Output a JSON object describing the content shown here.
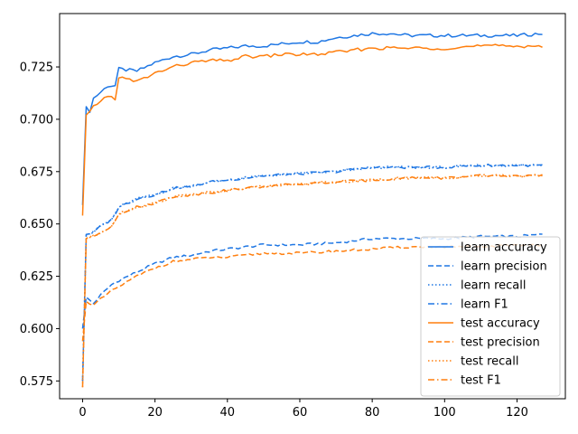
{
  "chart_data": {
    "type": "line",
    "xlim": [
      -6.35,
      133.35
    ],
    "ylim": [
      0.5665,
      0.7505
    ],
    "x_ticks": [
      0,
      20,
      40,
      60,
      80,
      100,
      120
    ],
    "y_ticks": [
      0.575,
      0.6,
      0.625,
      0.65,
      0.675,
      0.7,
      0.725
    ],
    "x_tick_labels": [
      "0",
      "20",
      "40",
      "60",
      "80",
      "100",
      "120"
    ],
    "y_tick_labels": [
      "0.575",
      "0.600",
      "0.625",
      "0.650",
      "0.675",
      "0.700",
      "0.725"
    ],
    "grid": false,
    "legend_position": "lower-right",
    "n_points": 128,
    "colors": {
      "learn": "#1f77e4",
      "test": "#ff7f0e"
    },
    "series": [
      {
        "name": "learn accuracy",
        "group": "learn",
        "style": "solid",
        "anchors": [
          [
            0,
            0.659
          ],
          [
            1,
            0.706
          ],
          [
            2,
            0.704
          ],
          [
            3,
            0.71
          ],
          [
            5,
            0.713
          ],
          [
            7,
            0.716
          ],
          [
            9,
            0.716
          ],
          [
            10,
            0.724
          ],
          [
            15,
            0.723
          ],
          [
            20,
            0.727
          ],
          [
            25,
            0.73
          ],
          [
            30,
            0.731
          ],
          [
            35,
            0.733
          ],
          [
            40,
            0.734
          ],
          [
            45,
            0.735
          ],
          [
            50,
            0.735
          ],
          [
            55,
            0.736
          ],
          [
            60,
            0.737
          ],
          [
            65,
            0.737
          ],
          [
            70,
            0.739
          ],
          [
            75,
            0.74
          ],
          [
            80,
            0.741
          ],
          [
            85,
            0.741
          ],
          [
            90,
            0.74
          ],
          [
            100,
            0.74
          ],
          [
            110,
            0.74
          ],
          [
            120,
            0.74
          ],
          [
            127,
            0.741
          ]
        ]
      },
      {
        "name": "learn precision",
        "group": "learn",
        "style": "dashed",
        "anchors": [
          [
            0,
            0.6
          ],
          [
            1,
            0.615
          ],
          [
            3,
            0.612
          ],
          [
            5,
            0.616
          ],
          [
            8,
            0.621
          ],
          [
            10,
            0.623
          ],
          [
            15,
            0.627
          ],
          [
            20,
            0.631
          ],
          [
            25,
            0.634
          ],
          [
            30,
            0.635
          ],
          [
            35,
            0.637
          ],
          [
            40,
            0.638
          ],
          [
            45,
            0.639
          ],
          [
            50,
            0.64
          ],
          [
            60,
            0.64
          ],
          [
            70,
            0.641
          ],
          [
            80,
            0.643
          ],
          [
            90,
            0.643
          ],
          [
            100,
            0.643
          ],
          [
            110,
            0.644
          ],
          [
            120,
            0.644
          ],
          [
            127,
            0.645
          ]
        ]
      },
      {
        "name": "learn recall",
        "group": "learn",
        "style": "dotted",
        "anchors": [
          [
            0,
            0.575
          ],
          [
            1,
            0.645
          ],
          [
            3,
            0.646
          ],
          [
            5,
            0.649
          ],
          [
            8,
            0.652
          ],
          [
            10,
            0.658
          ],
          [
            15,
            0.662
          ],
          [
            20,
            0.664
          ],
          [
            25,
            0.667
          ],
          [
            30,
            0.668
          ],
          [
            35,
            0.67
          ],
          [
            40,
            0.671
          ],
          [
            45,
            0.672
          ],
          [
            50,
            0.673
          ],
          [
            60,
            0.674
          ],
          [
            70,
            0.675
          ],
          [
            80,
            0.677
          ],
          [
            90,
            0.677
          ],
          [
            100,
            0.677
          ],
          [
            110,
            0.678
          ],
          [
            120,
            0.678
          ],
          [
            127,
            0.678
          ]
        ]
      },
      {
        "name": "learn F1",
        "group": "learn",
        "style": "dashdot",
        "anchors": [
          [
            0,
            0.575
          ],
          [
            1,
            0.645
          ],
          [
            3,
            0.646
          ],
          [
            5,
            0.649
          ],
          [
            8,
            0.652
          ],
          [
            10,
            0.658
          ],
          [
            15,
            0.662
          ],
          [
            20,
            0.664
          ],
          [
            25,
            0.667
          ],
          [
            30,
            0.668
          ],
          [
            35,
            0.67
          ],
          [
            40,
            0.671
          ],
          [
            45,
            0.672
          ],
          [
            50,
            0.673
          ],
          [
            60,
            0.674
          ],
          [
            70,
            0.675
          ],
          [
            80,
            0.677
          ],
          [
            90,
            0.677
          ],
          [
            100,
            0.677
          ],
          [
            110,
            0.678
          ],
          [
            120,
            0.678
          ],
          [
            127,
            0.678
          ]
        ]
      },
      {
        "name": "test accuracy",
        "group": "test",
        "style": "solid",
        "anchors": [
          [
            0,
            0.654
          ],
          [
            1,
            0.702
          ],
          [
            2,
            0.703
          ],
          [
            3,
            0.706
          ],
          [
            5,
            0.709
          ],
          [
            7,
            0.711
          ],
          [
            9,
            0.71
          ],
          [
            10,
            0.72
          ],
          [
            15,
            0.718
          ],
          [
            20,
            0.722
          ],
          [
            25,
            0.725
          ],
          [
            30,
            0.727
          ],
          [
            35,
            0.728
          ],
          [
            40,
            0.728
          ],
          [
            45,
            0.73
          ],
          [
            50,
            0.73
          ],
          [
            55,
            0.731
          ],
          [
            60,
            0.731
          ],
          [
            65,
            0.731
          ],
          [
            70,
            0.732
          ],
          [
            75,
            0.733
          ],
          [
            80,
            0.734
          ],
          [
            85,
            0.734
          ],
          [
            90,
            0.734
          ],
          [
            100,
            0.734
          ],
          [
            110,
            0.735
          ],
          [
            120,
            0.735
          ],
          [
            127,
            0.735
          ]
        ]
      },
      {
        "name": "test precision",
        "group": "test",
        "style": "dashed",
        "anchors": [
          [
            0,
            0.594
          ],
          [
            1,
            0.613
          ],
          [
            3,
            0.611
          ],
          [
            5,
            0.614
          ],
          [
            8,
            0.618
          ],
          [
            10,
            0.62
          ],
          [
            15,
            0.625
          ],
          [
            20,
            0.629
          ],
          [
            25,
            0.632
          ],
          [
            30,
            0.633
          ],
          [
            35,
            0.634
          ],
          [
            40,
            0.634
          ],
          [
            45,
            0.635
          ],
          [
            50,
            0.636
          ],
          [
            60,
            0.636
          ],
          [
            70,
            0.637
          ],
          [
            80,
            0.638
          ],
          [
            90,
            0.639
          ],
          [
            100,
            0.639
          ],
          [
            110,
            0.639
          ],
          [
            120,
            0.64
          ],
          [
            127,
            0.64
          ]
        ]
      },
      {
        "name": "test recall",
        "group": "test",
        "style": "dotted",
        "anchors": [
          [
            0,
            0.572
          ],
          [
            1,
            0.643
          ],
          [
            3,
            0.644
          ],
          [
            5,
            0.646
          ],
          [
            8,
            0.649
          ],
          [
            10,
            0.655
          ],
          [
            15,
            0.658
          ],
          [
            20,
            0.66
          ],
          [
            25,
            0.663
          ],
          [
            30,
            0.664
          ],
          [
            35,
            0.665
          ],
          [
            40,
            0.666
          ],
          [
            45,
            0.667
          ],
          [
            50,
            0.668
          ],
          [
            60,
            0.669
          ],
          [
            70,
            0.67
          ],
          [
            80,
            0.671
          ],
          [
            90,
            0.672
          ],
          [
            100,
            0.672
          ],
          [
            110,
            0.673
          ],
          [
            120,
            0.673
          ],
          [
            127,
            0.673
          ]
        ]
      },
      {
        "name": "test F1",
        "group": "test",
        "style": "dashdot",
        "anchors": [
          [
            0,
            0.572
          ],
          [
            1,
            0.643
          ],
          [
            3,
            0.644
          ],
          [
            5,
            0.646
          ],
          [
            8,
            0.649
          ],
          [
            10,
            0.655
          ],
          [
            15,
            0.658
          ],
          [
            20,
            0.66
          ],
          [
            25,
            0.663
          ],
          [
            30,
            0.664
          ],
          [
            35,
            0.665
          ],
          [
            40,
            0.666
          ],
          [
            45,
            0.667
          ],
          [
            50,
            0.668
          ],
          [
            60,
            0.669
          ],
          [
            70,
            0.67
          ],
          [
            80,
            0.671
          ],
          [
            90,
            0.672
          ],
          [
            100,
            0.672
          ],
          [
            110,
            0.673
          ],
          [
            120,
            0.673
          ],
          [
            127,
            0.673
          ]
        ]
      }
    ]
  }
}
